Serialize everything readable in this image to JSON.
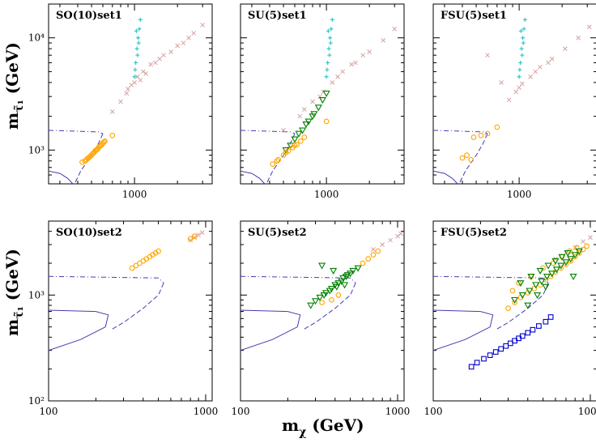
{
  "figure": {
    "xlabel_main": "m",
    "xlabel_sub": "χ",
    "xlabel_unit": " (GeV)",
    "ylabel_main": "m",
    "ylabel_sub": "τ̃₁",
    "ylabel_unit": " (GeV)"
  },
  "colors": {
    "orange": "#ffa500",
    "green": "#008000",
    "cyan": "#30c8c8",
    "pink": "#d8a0a0",
    "blue": "#0000cc",
    "boundary": "#4b3ab0"
  },
  "chart_data": [
    {
      "type": "scatter",
      "title": "SO(10)set1",
      "xlim": [
        250,
        3500
      ],
      "ylim": [
        500,
        20000
      ],
      "log": true,
      "xticks": [
        1000
      ],
      "yticks": [
        1000,
        10000
      ],
      "xtick_labels": [
        "1000"
      ],
      "ytick_labels": [
        "10³",
        "10⁴"
      ],
      "series": [
        {
          "marker": "x",
          "color": "pink",
          "x": [
            880,
            950,
            1050,
            1150,
            1300,
            1500,
            1800,
            2200,
            2600,
            3000,
            1000,
            1200,
            1600,
            2000,
            700,
            800,
            1400,
            2400,
            900,
            1100
          ],
          "y": [
            3200,
            3800,
            4500,
            5000,
            5800,
            6500,
            7500,
            9000,
            11000,
            13000,
            4000,
            4800,
            7000,
            8500,
            2200,
            2700,
            6000,
            10000,
            3500,
            4200
          ]
        },
        {
          "marker": "+",
          "color": "cyan",
          "x": [
            1000,
            1020,
            1040,
            1060,
            1080,
            1100,
            1050,
            1010,
            1070,
            1030
          ],
          "y": [
            4500,
            6000,
            8000,
            10000,
            12000,
            14500,
            7000,
            5200,
            9000,
            11500
          ]
        },
        {
          "marker": "o",
          "color": "orange",
          "x": [
            430,
            460,
            480,
            500,
            520,
            540,
            560,
            580,
            600,
            620,
            450,
            490,
            530,
            570,
            610,
            470,
            510,
            550,
            590,
            700
          ],
          "y": [
            780,
            820,
            860,
            900,
            950,
            1000,
            1050,
            1100,
            1150,
            1200,
            800,
            880,
            980,
            1080,
            1180,
            840,
            930,
            1020,
            1120,
            1350
          ]
        }
      ],
      "boundaries": [
        {
          "style": "dashdot",
          "x": [
            250,
            560,
            600
          ],
          "y": [
            1500,
            1450,
            1400
          ]
        },
        {
          "style": "dashed",
          "x": [
            600,
            560,
            500,
            420,
            380
          ],
          "y": [
            1400,
            1150,
            900,
            650,
            500
          ]
        },
        {
          "style": "solid",
          "x": [
            250,
            300,
            340,
            370
          ],
          "y": [
            650,
            620,
            560,
            500
          ]
        }
      ]
    },
    {
      "type": "scatter",
      "title": "SU(5)set1",
      "xlim": [
        250,
        3500
      ],
      "ylim": [
        500,
        20000
      ],
      "log": true,
      "xticks": [
        1000
      ],
      "yticks": [
        1000,
        10000
      ],
      "xtick_labels": [
        "1000"
      ],
      "ytick_labels": [
        "",
        ""
      ],
      "series": [
        {
          "marker": "x",
          "color": "pink",
          "x": [
            500,
            650,
            800,
            950,
            1100,
            1300,
            1600,
            2000,
            2500,
            3000,
            1200,
            1500,
            1800,
            900,
            700
          ],
          "y": [
            1500,
            2000,
            2700,
            3300,
            4000,
            5000,
            6000,
            7500,
            9500,
            12000,
            4500,
            5800,
            7000,
            3000,
            2300
          ]
        },
        {
          "marker": "+",
          "color": "cyan",
          "x": [
            1000,
            1020,
            1040,
            1060,
            1080,
            1100,
            1050,
            1010,
            1070,
            1030
          ],
          "y": [
            4500,
            6000,
            8000,
            10000,
            12000,
            14500,
            7000,
            5200,
            9000,
            11500
          ]
        },
        {
          "marker": "triangle",
          "color": "green",
          "x": [
            520,
            600,
            680,
            750,
            820,
            880,
            940,
            1000,
            560,
            640,
            720,
            800
          ],
          "y": [
            1000,
            1250,
            1500,
            1800,
            2100,
            2400,
            2800,
            3200,
            1100,
            1400,
            1700,
            2000
          ]
        },
        {
          "marker": "o",
          "color": "orange",
          "x": [
            420,
            460,
            500,
            540,
            580,
            620,
            660,
            700,
            1000,
            450,
            520,
            600
          ],
          "y": [
            750,
            820,
            900,
            980,
            1050,
            1120,
            1200,
            1300,
            1800,
            800,
            950,
            1100
          ]
        }
      ],
      "boundaries": [
        {
          "style": "dashdot",
          "x": [
            250,
            560,
            600
          ],
          "y": [
            1500,
            1450,
            1400
          ]
        },
        {
          "style": "dashed",
          "x": [
            600,
            560,
            500,
            420,
            380
          ],
          "y": [
            1400,
            1150,
            900,
            650,
            500
          ]
        },
        {
          "style": "solid",
          "x": [
            250,
            300,
            340,
            370
          ],
          "y": [
            650,
            620,
            560,
            500
          ]
        }
      ]
    },
    {
      "type": "scatter",
      "title": "FSU(5)set1",
      "xlim": [
        250,
        3500
      ],
      "ylim": [
        500,
        20000
      ],
      "log": true,
      "xticks": [
        1000
      ],
      "yticks": [
        1000,
        10000
      ],
      "xtick_labels": [
        "1000"
      ],
      "ytick_labels": [
        "",
        ""
      ],
      "series": [
        {
          "marker": "x",
          "color": "pink",
          "x": [
            850,
            950,
            1050,
            1200,
            1400,
            1700,
            2100,
            2600,
            3100,
            1000,
            1300,
            1600,
            600,
            750
          ],
          "y": [
            2800,
            3300,
            3900,
            4500,
            5500,
            6500,
            8000,
            10000,
            12500,
            3600,
            5000,
            6000,
            7000,
            4000
          ]
        },
        {
          "marker": "+",
          "color": "cyan",
          "x": [
            1000,
            1020,
            1040,
            1060,
            1080,
            1100,
            1050,
            1010,
            1070,
            1030
          ],
          "y": [
            4500,
            6000,
            8000,
            10000,
            12000,
            14500,
            7000,
            5200,
            9000,
            11500
          ]
        },
        {
          "marker": "o",
          "color": "orange",
          "x": [
            400,
            430,
            460,
            480,
            540,
            600,
            700
          ],
          "y": [
            850,
            900,
            820,
            1300,
            1350,
            1400,
            1600
          ]
        }
      ],
      "boundaries": [
        {
          "style": "dashdot",
          "x": [
            250,
            560,
            600
          ],
          "y": [
            1500,
            1450,
            1400
          ]
        },
        {
          "style": "dashed",
          "x": [
            600,
            560,
            500,
            420,
            380
          ],
          "y": [
            1400,
            1150,
            900,
            650,
            500
          ]
        },
        {
          "style": "solid",
          "x": [
            250,
            300,
            340,
            370
          ],
          "y": [
            650,
            620,
            560,
            500
          ]
        }
      ]
    },
    {
      "type": "scatter",
      "title": "SO(10)set2",
      "xlim": [
        100,
        1100
      ],
      "ylim": [
        100,
        5000
      ],
      "log": true,
      "xticks": [
        100,
        1000
      ],
      "yticks": [
        100,
        1000
      ],
      "xtick_labels": [
        "100",
        "1000"
      ],
      "ytick_labels": [
        "10²",
        "10³"
      ],
      "series": [
        {
          "marker": "x",
          "color": "pink",
          "x": [
            800,
            850,
            900,
            950
          ],
          "y": [
            3300,
            3500,
            3700,
            3900
          ]
        },
        {
          "marker": "o",
          "color": "orange",
          "x": [
            340,
            360,
            380,
            400,
            420,
            440,
            460,
            480,
            500,
            800,
            850
          ],
          "y": [
            1800,
            1900,
            2000,
            2100,
            2200,
            2300,
            2400,
            2500,
            2600,
            3400,
            3600
          ]
        }
      ],
      "boundaries": [
        {
          "style": "dashdot",
          "x": [
            100,
            500,
            540
          ],
          "y": [
            1500,
            1450,
            1300
          ]
        },
        {
          "style": "dashed",
          "x": [
            540,
            500,
            400,
            300,
            250
          ],
          "y": [
            1300,
            1000,
            750,
            550,
            470
          ]
        },
        {
          "style": "solid",
          "x": [
            100,
            200,
            240,
            230,
            160,
            100
          ],
          "y": [
            720,
            700,
            650,
            500,
            380,
            300
          ]
        }
      ]
    },
    {
      "type": "scatter",
      "title": "SU(5)set2",
      "xlim": [
        100,
        1100
      ],
      "ylim": [
        100,
        5000
      ],
      "log": true,
      "xticks": [
        100,
        1000
      ],
      "yticks": [
        100,
        1000
      ],
      "xtick_labels": [
        "100",
        "1000"
      ],
      "ytick_labels": [
        "",
        ""
      ],
      "series": [
        {
          "marker": "x",
          "color": "pink",
          "x": [
            700,
            800,
            900,
            1000,
            1050
          ],
          "y": [
            2700,
            3000,
            3300,
            3600,
            3800
          ]
        },
        {
          "marker": "triangle",
          "color": "green",
          "x": [
            280,
            320,
            350,
            380,
            400,
            420,
            450,
            480,
            520,
            560,
            300,
            340,
            370,
            410,
            440,
            470,
            500,
            330,
            390,
            460
          ],
          "y": [
            800,
            950,
            1050,
            1150,
            1250,
            1300,
            1450,
            1550,
            1700,
            1800,
            880,
            1000,
            1100,
            1200,
            1350,
            1500,
            1600,
            1900,
            1700,
            1250
          ]
        },
        {
          "marker": "o",
          "color": "orange",
          "x": [
            330,
            380,
            420,
            600,
            650,
            700,
            750
          ],
          "y": [
            850,
            900,
            1000,
            2000,
            2200,
            2400,
            2600
          ]
        }
      ],
      "boundaries": [
        {
          "style": "dashdot",
          "x": [
            100,
            500,
            540
          ],
          "y": [
            1500,
            1450,
            1300
          ]
        },
        {
          "style": "dashed",
          "x": [
            540,
            500,
            400,
            300,
            250
          ],
          "y": [
            1300,
            1000,
            750,
            550,
            470
          ]
        },
        {
          "style": "solid",
          "x": [
            100,
            200,
            240,
            230,
            160,
            100
          ],
          "y": [
            720,
            700,
            650,
            500,
            380,
            300
          ]
        }
      ]
    },
    {
      "type": "scatter",
      "title": "FSU(5)set2",
      "xlim": [
        100,
        1100
      ],
      "ylim": [
        100,
        5000
      ],
      "log": true,
      "xticks": [
        100,
        1000
      ],
      "yticks": [
        100,
        1000
      ],
      "xtick_labels": [
        "100",
        "1000"
      ],
      "ytick_labels": [
        "",
        ""
      ],
      "series": [
        {
          "marker": "x",
          "color": "pink",
          "x": [
            600,
            700,
            800,
            900,
            1000
          ],
          "y": [
            2200,
            2500,
            2800,
            3200,
            3500
          ]
        },
        {
          "marker": "o",
          "color": "orange",
          "x": [
            300,
            330,
            360,
            400,
            440,
            480,
            520,
            560,
            600,
            650,
            700,
            750,
            800,
            850,
            900,
            950,
            350,
            420,
            500,
            580,
            660,
            740,
            820,
            320
          ],
          "y": [
            750,
            850,
            950,
            1050,
            1150,
            1250,
            1400,
            1500,
            1650,
            1800,
            1950,
            2100,
            2300,
            2500,
            2700,
            2900,
            1300,
            1500,
            1800,
            2000,
            2300,
            2600,
            2800,
            1100
          ]
        },
        {
          "marker": "triangle",
          "color": "green",
          "x": [
            330,
            370,
            410,
            450,
            490,
            530,
            570,
            610,
            650,
            700,
            750,
            800,
            850,
            360,
            420,
            480,
            540,
            600,
            660,
            720,
            780,
            400,
            460,
            520
          ],
          "y": [
            900,
            1000,
            1100,
            1250,
            1350,
            1500,
            1600,
            1750,
            1900,
            2050,
            2200,
            2400,
            2600,
            1300,
            1500,
            1700,
            1900,
            2100,
            2300,
            2500,
            1500,
            800,
            1000,
            1200
          ]
        },
        {
          "marker": "square",
          "color": "blue",
          "x": [
            175,
            190,
            210,
            230,
            250,
            270,
            290,
            310,
            330,
            350,
            370,
            400,
            430,
            470,
            520,
            560
          ],
          "y": [
            210,
            230,
            250,
            270,
            290,
            310,
            330,
            350,
            370,
            390,
            410,
            440,
            470,
            510,
            560,
            620
          ]
        }
      ],
      "boundaries": [
        {
          "style": "dashdot",
          "x": [
            100,
            500,
            540
          ],
          "y": [
            1500,
            1450,
            1300
          ]
        },
        {
          "style": "dashed",
          "x": [
            540,
            500,
            400,
            300,
            250
          ],
          "y": [
            1300,
            1000,
            750,
            550,
            470
          ]
        },
        {
          "style": "solid",
          "x": [
            100,
            200,
            240,
            230,
            160,
            100
          ],
          "y": [
            720,
            700,
            650,
            500,
            380,
            300
          ]
        }
      ]
    }
  ]
}
